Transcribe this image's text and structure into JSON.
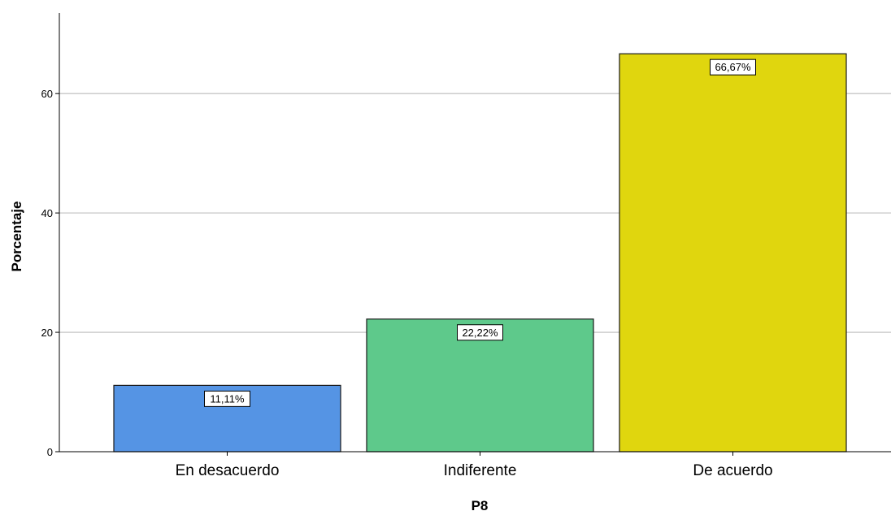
{
  "chart_data": {
    "type": "bar",
    "categories": [
      "En desacuerdo",
      "Indiferente",
      "De acuerdo"
    ],
    "values": [
      11.11,
      22.22,
      66.67
    ],
    "data_labels": [
      "11,11%",
      "22,22%",
      "66,67%"
    ],
    "colors": [
      "#5594e4",
      "#5ec98b",
      "#e0d60e"
    ],
    "xlabel": "P8",
    "ylabel": "Porcentaje",
    "yticks": [
      0,
      20,
      40,
      60
    ],
    "ylim": [
      0,
      73.5
    ],
    "grid": true,
    "legend": "none"
  }
}
